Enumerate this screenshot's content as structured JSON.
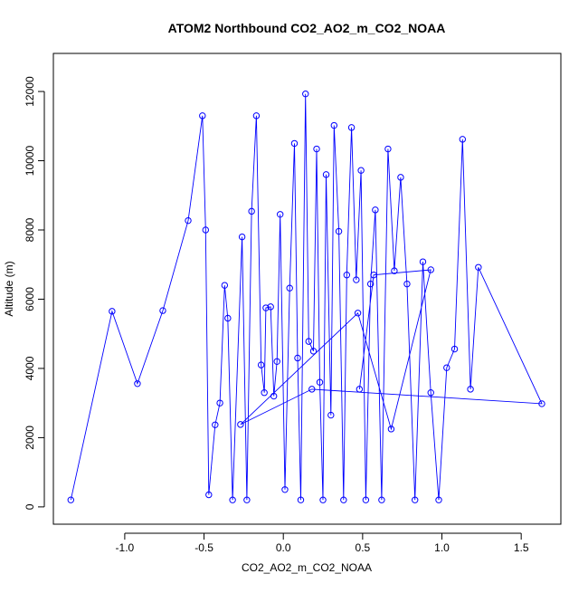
{
  "chart_data": {
    "type": "line",
    "title": "ATOM2 Northbound CO2_AO2_m_CO2_NOAA",
    "xlabel": "CO2_AO2_m_CO2_NOAA",
    "ylabel": "Altitude (m)",
    "xlim": [
      -1.45,
      1.75
    ],
    "ylim": [
      -500,
      13100
    ],
    "xticks": [
      -1.0,
      -0.5,
      0.0,
      0.5,
      1.0,
      1.5
    ],
    "xtick_labels": [
      "-1.0",
      "-0.5",
      "0.0",
      "0.5",
      "1.0",
      "1.5"
    ],
    "yticks": [
      0,
      2000,
      4000,
      6000,
      8000,
      10000,
      12000
    ],
    "ytick_labels": [
      "0",
      "2000",
      "4000",
      "6000",
      "8000",
      "10000",
      "12000"
    ],
    "grid": false,
    "legend": "none",
    "colors": {
      "series": "#0000ff",
      "axes": "#000000"
    },
    "series": [
      {
        "marker": "open-circle",
        "x": [
          -1.34,
          -1.08,
          -0.92,
          -0.76,
          -0.6,
          -0.51,
          -0.49,
          -0.47,
          -0.43,
          -0.4,
          -0.37,
          -0.35,
          -0.32,
          -0.26,
          -0.23,
          -0.2,
          -0.17,
          -0.14,
          -0.12,
          -0.11,
          -0.08,
          -0.06,
          -0.04,
          -0.02,
          0.01,
          0.04,
          0.07,
          0.09,
          0.11,
          0.14,
          0.16,
          0.19,
          0.21,
          0.23,
          0.25,
          0.27,
          0.3,
          0.32,
          0.35,
          0.38,
          0.4,
          0.43,
          0.46,
          0.49,
          0.52,
          0.55,
          0.58,
          0.62,
          0.66,
          0.7,
          0.74,
          0.78,
          0.83,
          0.88,
          0.93,
          0.98,
          1.03,
          1.08,
          1.13,
          1.18,
          1.23,
          1.63,
          0.18,
          -0.27,
          0.47,
          0.68,
          0.93,
          0.57,
          0.48
        ],
        "y": [
          200,
          5650,
          3560,
          5670,
          8270,
          11300,
          8000,
          350,
          2370,
          3000,
          6400,
          5450,
          200,
          7800,
          200,
          8540,
          11300,
          4100,
          3300,
          5750,
          5780,
          3200,
          4200,
          8450,
          500,
          6320,
          10500,
          4300,
          200,
          11930,
          4780,
          4500,
          10340,
          3600,
          200,
          9600,
          2650,
          11020,
          7960,
          200,
          6700,
          10960,
          6560,
          9720,
          200,
          6440,
          8580,
          200,
          10340,
          6820,
          9520,
          6440,
          200,
          7080,
          3300,
          200,
          4020,
          4560,
          10620,
          3400,
          6920,
          2980,
          3400,
          2380,
          5600,
          2250,
          6850,
          6700,
          3400
        ]
      }
    ]
  }
}
